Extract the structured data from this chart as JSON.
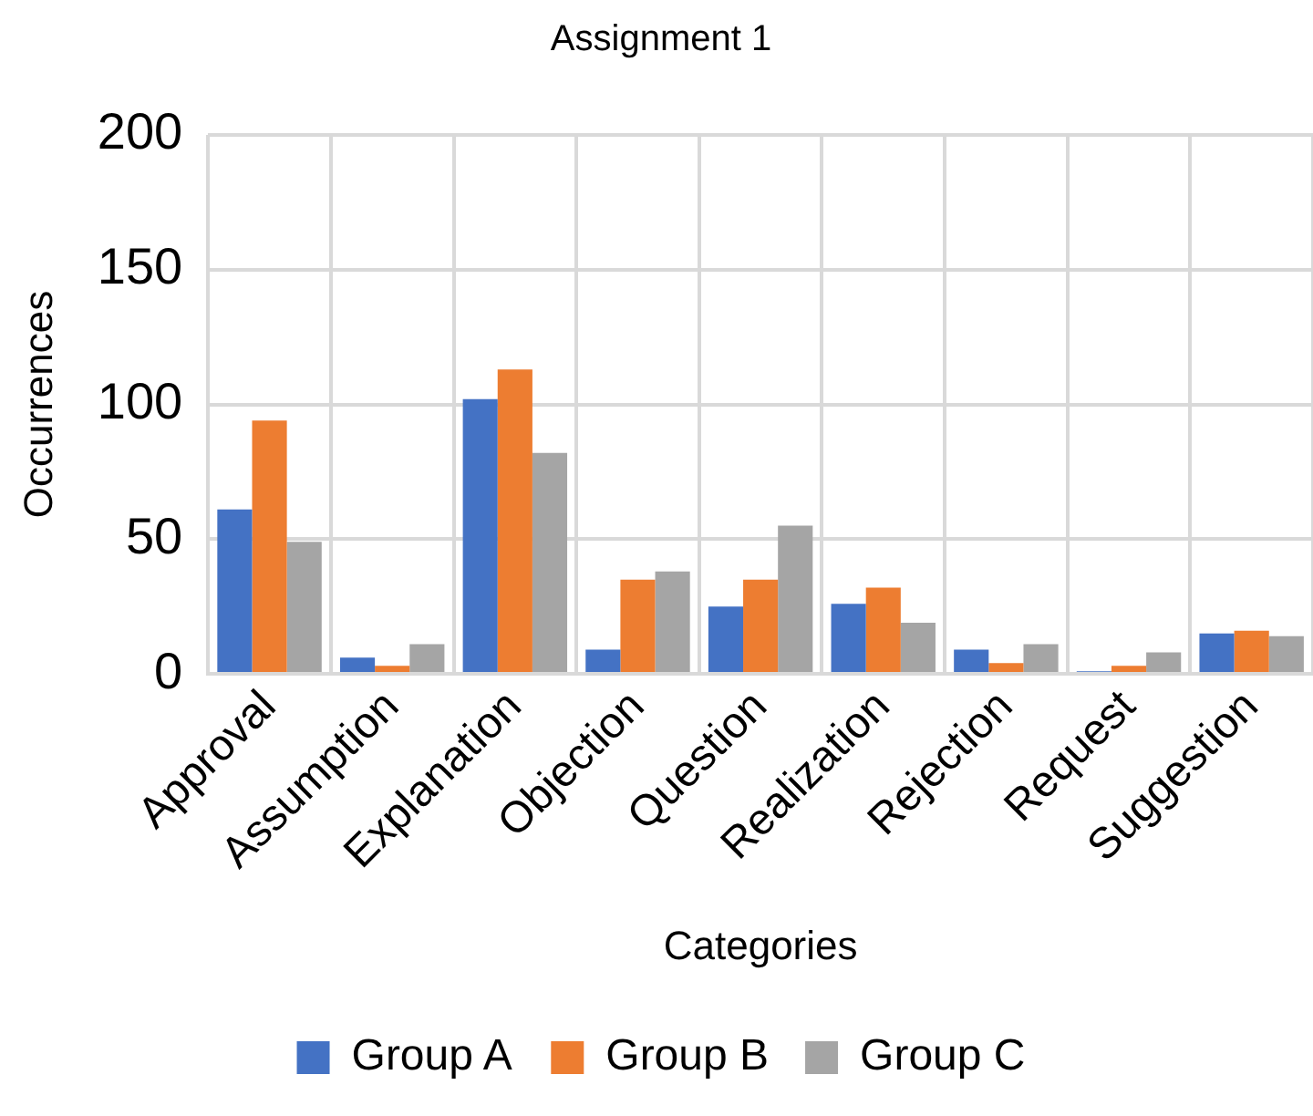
{
  "chart_data": {
    "type": "bar",
    "title": "Assignment 1",
    "xlabel": "Categories",
    "ylabel": "Occurrences",
    "categories": [
      "Approval",
      "Assumption",
      "Explanation",
      "Objection",
      "Question",
      "Realization",
      "Rejection",
      "Request",
      "Suggestion"
    ],
    "series": [
      {
        "name": "Group A",
        "color": "#4472c4",
        "values": [
          61,
          6,
          102,
          9,
          25,
          26,
          9,
          1,
          15
        ]
      },
      {
        "name": "Group B",
        "color": "#ed7d31",
        "values": [
          94,
          3,
          113,
          35,
          35,
          32,
          4,
          3,
          16
        ]
      },
      {
        "name": "Group C",
        "color": "#a5a5a5",
        "values": [
          49,
          11,
          82,
          38,
          55,
          19,
          11,
          8,
          14
        ]
      }
    ],
    "ylim": [
      0,
      200
    ],
    "yticks": [
      0,
      50,
      100,
      150,
      200
    ],
    "grid": true,
    "legend": "bottom"
  }
}
